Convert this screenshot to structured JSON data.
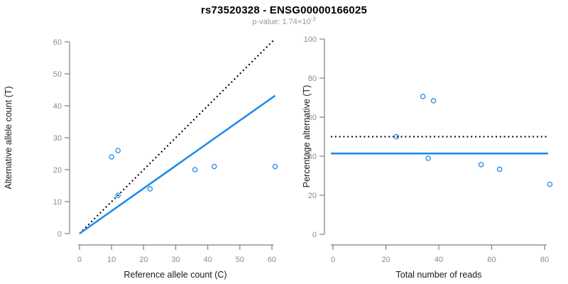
{
  "header": {
    "title": "rs73520328 - ENSG00000166025",
    "subtitle_prefix": "p-value: 1.74×10",
    "subtitle_exponent": "-3"
  },
  "colors": {
    "accent_blue": "#1e8beb",
    "dashed_black": "#000000",
    "axis_line": "#7f7f7f",
    "tick_label": "#8c8c8c",
    "axis_title": "#1a1a1a",
    "subtitle_gray": "#999999",
    "background": "#ffffff"
  },
  "chart_data": [
    {
      "type": "scatter",
      "xlabel": "Reference allele count (C)",
      "ylabel": "Alternative allele count (T)",
      "xlim": [
        0,
        60
      ],
      "ylim": [
        0,
        60
      ],
      "xticks": [
        0,
        10,
        20,
        30,
        40,
        50,
        60
      ],
      "yticks": [
        0,
        10,
        20,
        30,
        40,
        50,
        60
      ],
      "grid": false,
      "legend": null,
      "points": [
        {
          "x": 10,
          "y": 24
        },
        {
          "x": 12,
          "y": 26
        },
        {
          "x": 12,
          "y": 12
        },
        {
          "x": 22,
          "y": 14
        },
        {
          "x": 36,
          "y": 20
        },
        {
          "x": 42,
          "y": 21
        },
        {
          "x": 61,
          "y": 21
        }
      ],
      "lines": [
        {
          "name": "identity-line",
          "style": "dotted",
          "color": "black",
          "slope": 1,
          "intercept": 0,
          "x_range": [
            0,
            60.5
          ]
        },
        {
          "name": "fit-line",
          "style": "solid",
          "color": "blue",
          "slope": 0.708,
          "intercept": 0,
          "x_range": [
            0,
            61
          ]
        }
      ]
    },
    {
      "type": "scatter",
      "xlabel": "Total number of reads",
      "ylabel": "Percentage alternative (T)",
      "xlim": [
        0,
        80
      ],
      "ylim": [
        0,
        100
      ],
      "xticks": [
        0,
        20,
        40,
        60,
        80
      ],
      "yticks": [
        0,
        20,
        40,
        60,
        80,
        100
      ],
      "grid": false,
      "legend": null,
      "points": [
        {
          "x": 24,
          "y": 50
        },
        {
          "x": 34,
          "y": 70.6
        },
        {
          "x": 38,
          "y": 68.4
        },
        {
          "x": 36,
          "y": 38.9
        },
        {
          "x": 56,
          "y": 35.7
        },
        {
          "x": 63,
          "y": 33.3
        },
        {
          "x": 82,
          "y": 25.6
        }
      ],
      "hlines": [
        {
          "name": "expected-50pct-line",
          "y": 50,
          "style": "dotted",
          "color": "black"
        },
        {
          "name": "observed-mean-line",
          "y": 41.4,
          "style": "solid",
          "color": "blue"
        }
      ]
    }
  ]
}
